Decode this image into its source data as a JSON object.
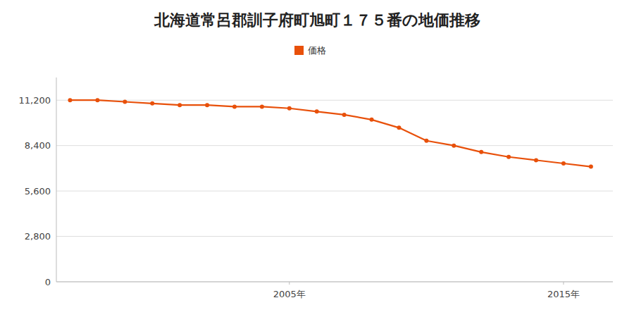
{
  "chart_data": {
    "type": "line",
    "title": "北海道常呂郡訓子府町旭町１７５番の地価推移",
    "x": [
      1997,
      1998,
      1999,
      2000,
      2001,
      2002,
      2003,
      2004,
      2005,
      2006,
      2007,
      2008,
      2009,
      2010,
      2011,
      2012,
      2013,
      2014,
      2015,
      2016
    ],
    "series": [
      {
        "name": "価格",
        "color": "#E8500A",
        "marker": "circle",
        "values": [
          11200,
          11200,
          11100,
          11000,
          10900,
          10900,
          10800,
          10800,
          10700,
          10500,
          10300,
          10000,
          9500,
          8700,
          8400,
          8000,
          7700,
          7500,
          7300,
          7100
        ]
      }
    ],
    "xlim": [
      1996.5,
      2016.8
    ],
    "xticks": [
      {
        "value": 2005,
        "label": "2005年"
      },
      {
        "value": 2015,
        "label": "2015年"
      }
    ],
    "ylim": [
      0,
      12600
    ],
    "yticks": [
      0,
      {
        "value": 2800,
        "label": "2,800"
      },
      {
        "value": 5600,
        "label": "5,600"
      },
      {
        "value": 8400,
        "label": "8,400"
      },
      {
        "value": 11200,
        "label": "11,200"
      }
    ],
    "grid": true,
    "legend": "top"
  }
}
